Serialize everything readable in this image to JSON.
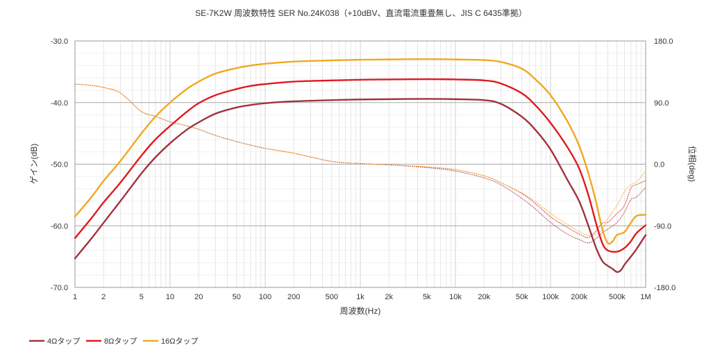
{
  "chart_data": {
    "type": "line",
    "title": "SE-7K2W 周波数特性 SER No.24K038（+10dBV、直流電流重畳無し、JIS C 6435準拠）",
    "xlabel": "周波数(Hz)",
    "ylabel": "ゲイン(dB)",
    "y2label": "位相(deg)",
    "x_scale": "log",
    "xlim": [
      1,
      1000000
    ],
    "ylim": [
      -70,
      -30
    ],
    "y2lim": [
      -180,
      180
    ],
    "x_ticks": [
      {
        "value": 1,
        "label": "1"
      },
      {
        "value": 2,
        "label": "2"
      },
      {
        "value": 5,
        "label": "5"
      },
      {
        "value": 10,
        "label": "10"
      },
      {
        "value": 20,
        "label": "20"
      },
      {
        "value": 50,
        "label": "50"
      },
      {
        "value": 100,
        "label": "100"
      },
      {
        "value": 200,
        "label": "200"
      },
      {
        "value": 500,
        "label": "500"
      },
      {
        "value": 1000,
        "label": "1k"
      },
      {
        "value": 2000,
        "label": "2k"
      },
      {
        "value": 5000,
        "label": "5k"
      },
      {
        "value": 10000,
        "label": "10k"
      },
      {
        "value": 20000,
        "label": "20k"
      },
      {
        "value": 50000,
        "label": "50k"
      },
      {
        "value": 100000,
        "label": "100k"
      },
      {
        "value": 200000,
        "label": "200k"
      },
      {
        "value": 500000,
        "label": "500k"
      },
      {
        "value": 1000000,
        "label": "1M"
      }
    ],
    "y_ticks": [
      {
        "value": -30,
        "label": "-30.0"
      },
      {
        "value": -40,
        "label": "-40.0"
      },
      {
        "value": -50,
        "label": "-50.0"
      },
      {
        "value": -60,
        "label": "-60.0"
      },
      {
        "value": -70,
        "label": "-70.0"
      }
    ],
    "y2_ticks": [
      {
        "value": 180,
        "label": "180.0"
      },
      {
        "value": 90,
        "label": "90.0"
      },
      {
        "value": 0,
        "label": "0.0"
      },
      {
        "value": -90,
        "label": "-90.0"
      },
      {
        "value": -180,
        "label": "-180.0"
      }
    ],
    "grid": true,
    "legend_position": "bottom-left",
    "series": [
      {
        "name": "4Ωタップ",
        "color": "#a0323c",
        "gain": [
          [
            1,
            -65.3
          ],
          [
            1.5,
            -62
          ],
          [
            2,
            -59.5
          ],
          [
            3,
            -56
          ],
          [
            5,
            -51.5
          ],
          [
            7,
            -48.9
          ],
          [
            10,
            -46.6
          ],
          [
            15,
            -44.4
          ],
          [
            20,
            -43.2
          ],
          [
            30,
            -41.8
          ],
          [
            50,
            -40.8
          ],
          [
            70,
            -40.4
          ],
          [
            100,
            -40.1
          ],
          [
            200,
            -39.8
          ],
          [
            500,
            -39.6
          ],
          [
            1000,
            -39.5
          ],
          [
            2000,
            -39.45
          ],
          [
            5000,
            -39.4
          ],
          [
            10000,
            -39.45
          ],
          [
            20000,
            -39.6
          ],
          [
            30000,
            -40.2
          ],
          [
            50000,
            -42.3
          ],
          [
            70000,
            -44.5
          ],
          [
            100000,
            -47.6
          ],
          [
            150000,
            -52.5
          ],
          [
            200000,
            -56
          ],
          [
            250000,
            -60
          ],
          [
            300000,
            -63.5
          ],
          [
            350000,
            -65.7
          ],
          [
            400000,
            -66.5
          ],
          [
            450000,
            -67
          ],
          [
            500000,
            -67.5
          ],
          [
            550000,
            -67.2
          ],
          [
            600000,
            -66.3
          ],
          [
            700000,
            -65
          ],
          [
            800000,
            -63.8
          ],
          [
            1000000,
            -61.5
          ]
        ],
        "phase": [
          [
            1,
            117
          ],
          [
            1.5,
            115
          ],
          [
            2,
            112
          ],
          [
            3,
            104
          ],
          [
            5,
            77
          ],
          [
            7,
            70
          ],
          [
            10,
            62
          ],
          [
            15,
            56
          ],
          [
            20,
            51
          ],
          [
            30,
            42
          ],
          [
            50,
            33
          ],
          [
            70,
            28
          ],
          [
            100,
            23
          ],
          [
            200,
            16
          ],
          [
            500,
            4
          ],
          [
            1000,
            1
          ],
          [
            2000,
            -1
          ],
          [
            5000,
            -5
          ],
          [
            10000,
            -10
          ],
          [
            20000,
            -20
          ],
          [
            30000,
            -30
          ],
          [
            50000,
            -50
          ],
          [
            70000,
            -66
          ],
          [
            100000,
            -85
          ],
          [
            150000,
            -102
          ],
          [
            200000,
            -110
          ],
          [
            250000,
            -115
          ],
          [
            300000,
            -109
          ],
          [
            350000,
            -100
          ],
          [
            400000,
            -95
          ],
          [
            500000,
            -85
          ],
          [
            600000,
            -70
          ],
          [
            700000,
            -52
          ],
          [
            800000,
            -48
          ],
          [
            1000000,
            -34
          ]
        ]
      },
      {
        "name": "8Ωタップ",
        "color": "#e0191e",
        "gain": [
          [
            1,
            -62
          ],
          [
            1.5,
            -58.7
          ],
          [
            2,
            -56.2
          ],
          [
            3,
            -53
          ],
          [
            5,
            -48.6
          ],
          [
            7,
            -46
          ],
          [
            10,
            -43.8
          ],
          [
            15,
            -41.5
          ],
          [
            20,
            -40.1
          ],
          [
            30,
            -38.8
          ],
          [
            50,
            -37.8
          ],
          [
            70,
            -37.3
          ],
          [
            100,
            -37
          ],
          [
            200,
            -36.6
          ],
          [
            500,
            -36.4
          ],
          [
            1000,
            -36.3
          ],
          [
            2000,
            -36.25
          ],
          [
            5000,
            -36.2
          ],
          [
            10000,
            -36.25
          ],
          [
            20000,
            -36.4
          ],
          [
            30000,
            -36.9
          ],
          [
            50000,
            -38.5
          ],
          [
            70000,
            -40.5
          ],
          [
            100000,
            -43.3
          ],
          [
            150000,
            -47.2
          ],
          [
            200000,
            -50.7
          ],
          [
            250000,
            -55
          ],
          [
            300000,
            -59.5
          ],
          [
            350000,
            -62.8
          ],
          [
            400000,
            -64
          ],
          [
            500000,
            -64.2
          ],
          [
            600000,
            -63.6
          ],
          [
            700000,
            -62.5
          ],
          [
            800000,
            -61.2
          ],
          [
            1000000,
            -59.9
          ]
        ],
        "phase": [
          [
            1,
            117
          ],
          [
            1.5,
            115
          ],
          [
            2,
            112
          ],
          [
            3,
            104
          ],
          [
            5,
            77
          ],
          [
            7,
            70
          ],
          [
            10,
            62
          ],
          [
            15,
            56
          ],
          [
            20,
            51
          ],
          [
            30,
            42
          ],
          [
            50,
            33
          ],
          [
            70,
            28
          ],
          [
            100,
            23
          ],
          [
            200,
            16
          ],
          [
            500,
            4
          ],
          [
            1000,
            1
          ],
          [
            2000,
            -1
          ],
          [
            5000,
            -4
          ],
          [
            10000,
            -8
          ],
          [
            20000,
            -17
          ],
          [
            30000,
            -27
          ],
          [
            50000,
            -43
          ],
          [
            70000,
            -58
          ],
          [
            100000,
            -77
          ],
          [
            150000,
            -92
          ],
          [
            200000,
            -102
          ],
          [
            250000,
            -107
          ],
          [
            300000,
            -98
          ],
          [
            350000,
            -86
          ],
          [
            400000,
            -85
          ],
          [
            500000,
            -72
          ],
          [
            600000,
            -60
          ],
          [
            700000,
            -35
          ],
          [
            800000,
            -30
          ],
          [
            1000000,
            -24
          ]
        ]
      },
      {
        "name": "16Ωタップ",
        "color": "#f0a81e",
        "gain": [
          [
            1,
            -58.5
          ],
          [
            1.5,
            -55.3
          ],
          [
            2,
            -52.7
          ],
          [
            3,
            -49.5
          ],
          [
            5,
            -45
          ],
          [
            7,
            -42.3
          ],
          [
            10,
            -40
          ],
          [
            15,
            -37.8
          ],
          [
            20,
            -36.6
          ],
          [
            30,
            -35.3
          ],
          [
            50,
            -34.4
          ],
          [
            70,
            -34
          ],
          [
            100,
            -33.7
          ],
          [
            200,
            -33.35
          ],
          [
            500,
            -33.15
          ],
          [
            1000,
            -33.05
          ],
          [
            2000,
            -33
          ],
          [
            5000,
            -32.95
          ],
          [
            10000,
            -33
          ],
          [
            20000,
            -33.1
          ],
          [
            30000,
            -33.4
          ],
          [
            50000,
            -34.5
          ],
          [
            70000,
            -36.3
          ],
          [
            100000,
            -38.8
          ],
          [
            150000,
            -43
          ],
          [
            200000,
            -47
          ],
          [
            250000,
            -51.5
          ],
          [
            300000,
            -56
          ],
          [
            350000,
            -60.5
          ],
          [
            400000,
            -62.8
          ],
          [
            450000,
            -62.5
          ],
          [
            500000,
            -61.5
          ],
          [
            600000,
            -61
          ],
          [
            700000,
            -59.5
          ],
          [
            800000,
            -58.4
          ],
          [
            1000000,
            -58.2
          ]
        ],
        "phase": [
          [
            1,
            117
          ],
          [
            1.5,
            115
          ],
          [
            2,
            112
          ],
          [
            3,
            104
          ],
          [
            5,
            77
          ],
          [
            7,
            70
          ],
          [
            10,
            62
          ],
          [
            15,
            56
          ],
          [
            20,
            51
          ],
          [
            30,
            42
          ],
          [
            50,
            33
          ],
          [
            70,
            28
          ],
          [
            100,
            23
          ],
          [
            200,
            16
          ],
          [
            500,
            4
          ],
          [
            1000,
            1
          ],
          [
            2000,
            -1
          ],
          [
            5000,
            -4
          ],
          [
            10000,
            -8
          ],
          [
            20000,
            -17
          ],
          [
            30000,
            -27
          ],
          [
            50000,
            -42
          ],
          [
            70000,
            -55
          ],
          [
            100000,
            -72
          ],
          [
            150000,
            -88
          ],
          [
            200000,
            -98
          ],
          [
            250000,
            -104
          ],
          [
            300000,
            -102
          ],
          [
            350000,
            -96
          ],
          [
            400000,
            -80
          ],
          [
            500000,
            -60
          ],
          [
            600000,
            -40
          ],
          [
            700000,
            -30
          ],
          [
            800000,
            -26
          ],
          [
            1000000,
            -10
          ]
        ]
      }
    ]
  }
}
